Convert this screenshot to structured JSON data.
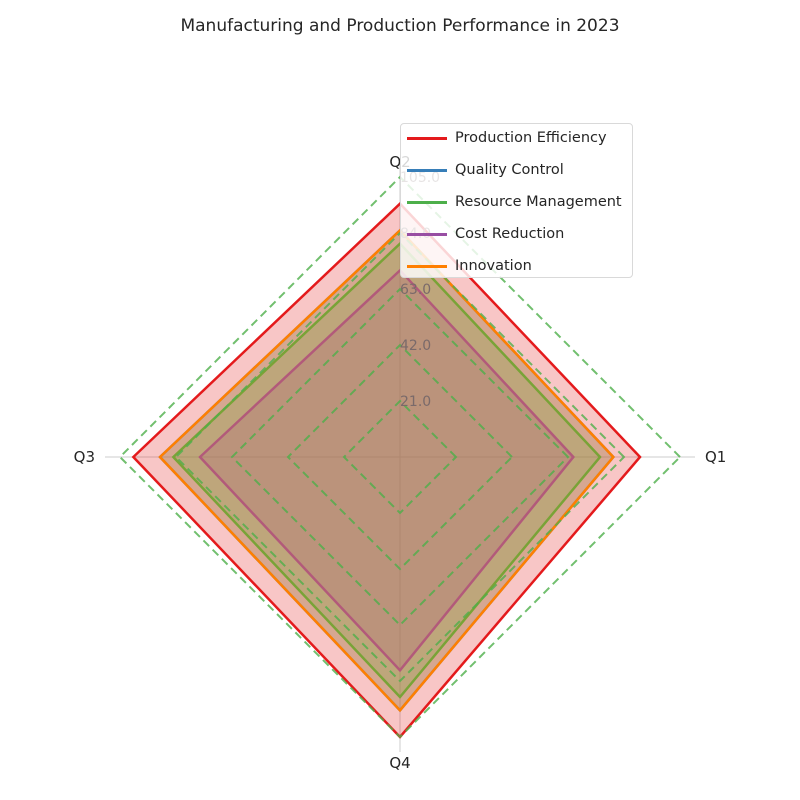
{
  "title": "Manufacturing and Production Performance in 2023",
  "chart_data": {
    "type": "radar",
    "title": "Manufacturing and Production Performance in 2023",
    "categories": [
      "Q1",
      "Q2",
      "Q3",
      "Q4"
    ],
    "rmax": 105.0,
    "radial_ticks": [
      21.0,
      42.0,
      63.0,
      84.0,
      105.0
    ],
    "radial_tick_labels": [
      "21.0",
      "42.0",
      "63.0",
      "84.0",
      "105.0"
    ],
    "series": [
      {
        "name": "Production Efficiency",
        "values": [
          90,
          95,
          100,
          105
        ],
        "color": "#e41a1c"
      },
      {
        "name": "Quality Control",
        "values": [
          80,
          85,
          90,
          95
        ],
        "color": "#377eb8"
      },
      {
        "name": "Resource Management",
        "values": [
          75,
          80,
          85,
          90
        ],
        "color": "#4daf4a"
      },
      {
        "name": "Cost Reduction",
        "values": [
          65,
          70,
          75,
          80
        ],
        "color": "#984ea3"
      },
      {
        "name": "Innovation",
        "values": [
          80,
          85,
          90,
          95
        ],
        "color": "#ff7f00"
      }
    ],
    "grid": true,
    "legend_position": "top-right"
  }
}
